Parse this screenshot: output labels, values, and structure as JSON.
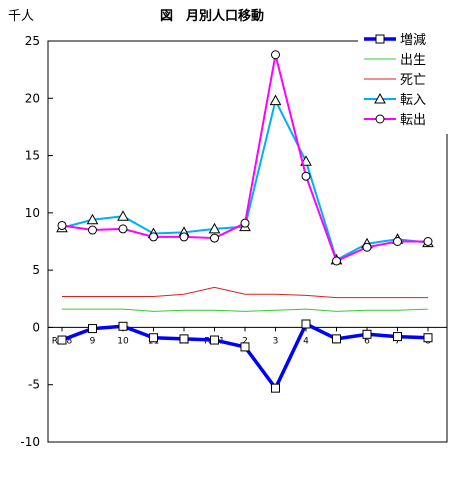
{
  "chart_data": {
    "type": "line",
    "title": "図　月別人口移動",
    "unit_label": "千人",
    "ylim": [
      -10,
      25
    ],
    "yticks": [
      -10,
      -5,
      0,
      5,
      10,
      15,
      20,
      25
    ],
    "categories": [
      "R1.8",
      "9",
      "10",
      "11",
      "12",
      "R2.1",
      "2",
      "3",
      "4",
      "5",
      "6",
      "7",
      "8"
    ],
    "grid": false,
    "legend_position": "top-right",
    "series": [
      {
        "name": "増減",
        "color": "#0000ff",
        "marker": "square",
        "values": [
          -1.1,
          -0.1,
          0.1,
          -0.9,
          -1.0,
          -1.1,
          -1.7,
          -5.3,
          0.3,
          -1.0,
          -0.6,
          -0.8,
          -0.9
        ]
      },
      {
        "name": "出生",
        "color": "#33cc33",
        "marker": "none",
        "values": [
          1.6,
          1.6,
          1.6,
          1.4,
          1.5,
          1.5,
          1.4,
          1.5,
          1.6,
          1.4,
          1.5,
          1.5,
          1.6
        ]
      },
      {
        "name": "死亡",
        "color": "#dd2222",
        "marker": "none",
        "values": [
          2.7,
          2.7,
          2.7,
          2.7,
          2.9,
          3.5,
          2.9,
          2.9,
          2.8,
          2.6,
          2.6,
          2.6,
          2.6
        ]
      },
      {
        "name": "転入",
        "color": "#00b0f0",
        "marker": "triangle",
        "values": [
          8.7,
          9.4,
          9.7,
          8.2,
          8.3,
          8.6,
          8.8,
          19.8,
          14.5,
          5.9,
          7.3,
          7.7,
          7.4
        ]
      },
      {
        "name": "転出",
        "color": "#ff00ff",
        "marker": "circle",
        "values": [
          8.9,
          8.5,
          8.6,
          7.9,
          7.9,
          7.8,
          9.1,
          23.8,
          13.2,
          5.8,
          7.0,
          7.5,
          7.5
        ]
      }
    ]
  }
}
